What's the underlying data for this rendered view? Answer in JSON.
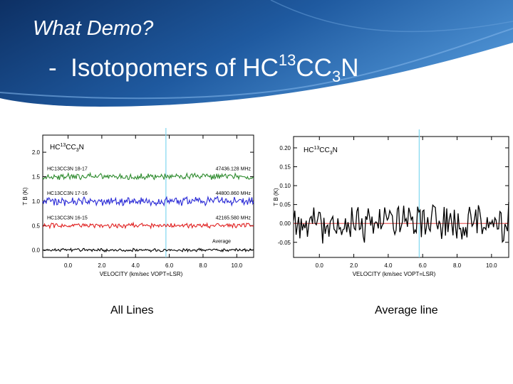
{
  "slide": {
    "subtitle": "What Demo?",
    "title_dash": "-",
    "title_main": "Isotopomers of HC",
    "title_sup": "13",
    "title_mid": "CC",
    "title_sub": "3",
    "title_end": "N",
    "captions": {
      "left": "All Lines",
      "right": "Average line"
    },
    "colors": {
      "banner_dark": "#0f3a73",
      "banner_light": "#3d7fc4",
      "marker": "#80d8f0",
      "green": "#2e8b2e",
      "blue": "#2a2ad6",
      "red": "#e02020",
      "black": "#000000"
    }
  },
  "chart_data": [
    {
      "type": "line",
      "label_prefix": "HC",
      "label_sup": "13",
      "label_mid": "CC",
      "label_sub": "3",
      "label_end": "N",
      "xlabel": "VELOCITY (km/sec VOPT=LSR)",
      "ylabel": "T B (K)",
      "xlim": [
        -1.5,
        11.0
      ],
      "ylim": [
        -0.15,
        2.35
      ],
      "xticks": [
        "0.0",
        "2.0",
        "4.0",
        "6.0",
        "8.0",
        "10.0"
      ],
      "xtick_values": [
        0,
        2,
        4,
        6,
        8,
        10
      ],
      "yticks": [
        "0.0",
        "0.5",
        "1.0",
        "1.5",
        "2.0"
      ],
      "ytick_values": [
        0,
        0.5,
        1.0,
        1.5,
        2.0
      ],
      "marker_velocity": 5.8,
      "series": [
        {
          "name": "HC13CC3N 18-17",
          "freq": "47436.128 MHz",
          "baseline": 1.5,
          "noise": 0.05,
          "color": "green"
        },
        {
          "name": "HC13CC3N 17-16",
          "freq": "44800.860 MHz",
          "baseline": 1.0,
          "noise": 0.07,
          "color": "blue"
        },
        {
          "name": "HC13CC3N 16-15",
          "freq": "42165.580 MHz",
          "baseline": 0.5,
          "noise": 0.04,
          "color": "red"
        },
        {
          "name": "Average",
          "freq": "",
          "baseline": 0.0,
          "noise": 0.025,
          "color": "black"
        }
      ]
    },
    {
      "type": "line",
      "label_prefix": "HC",
      "label_sup": "13",
      "label_mid": "CC",
      "label_sub": "3",
      "label_end": "N",
      "xlabel": "VELOCITY (km/sec VOPT=LSR)",
      "ylabel": "T B (K)",
      "xlim": [
        -1.5,
        11.0
      ],
      "ylim": [
        -0.09,
        0.23
      ],
      "xticks": [
        "0.0",
        "2.0",
        "4.0",
        "6.0",
        "8.0",
        "10.0"
      ],
      "xtick_values": [
        0,
        2,
        4,
        6,
        8,
        10
      ],
      "yticks": [
        "0.20",
        "0.15",
        "0.10",
        "0.05",
        "0.00",
        "-0.05"
      ],
      "ytick_values": [
        0.2,
        0.15,
        0.1,
        0.05,
        0.0,
        -0.05
      ],
      "marker_velocity": 5.8,
      "zero_line": 0.0,
      "series": [
        {
          "name": "Average",
          "baseline": 0.0,
          "noise": 0.04,
          "color": "black"
        }
      ]
    }
  ]
}
